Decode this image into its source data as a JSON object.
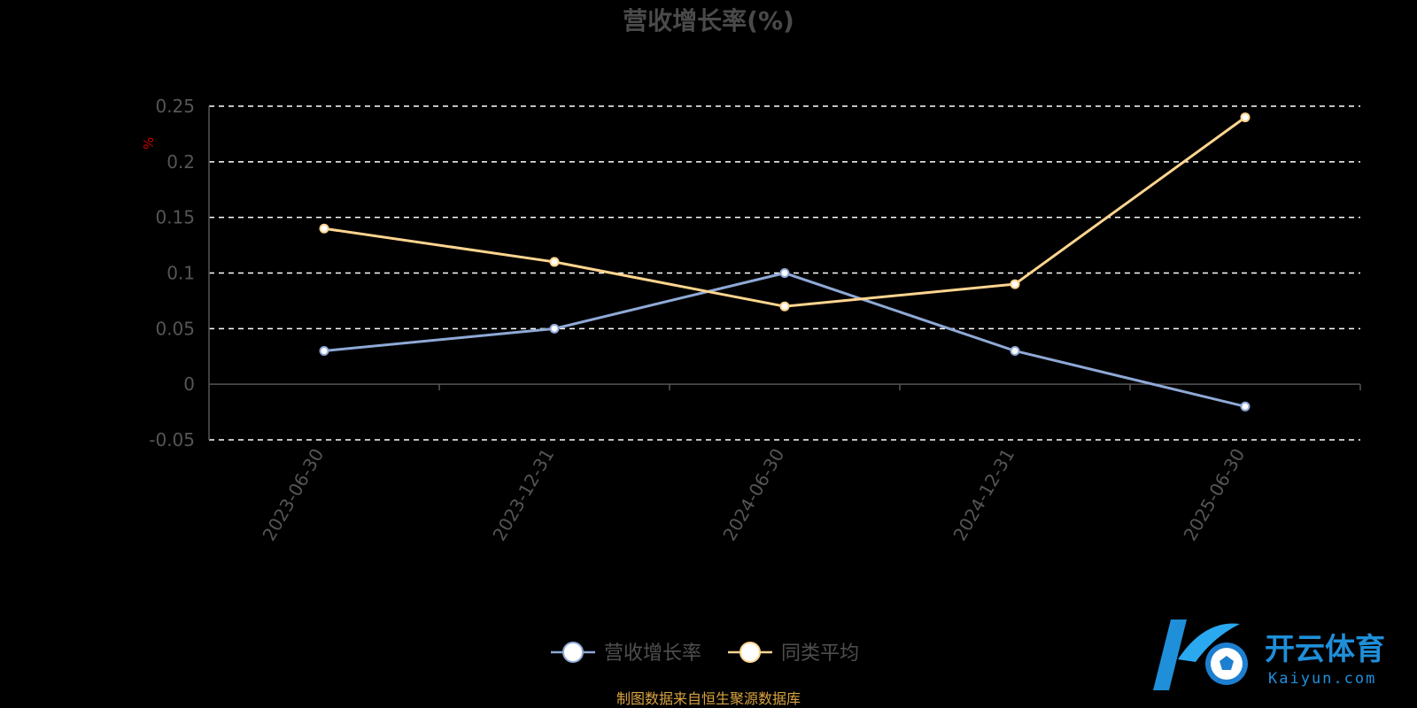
{
  "watermark": {
    "brand_cn": "开云体育",
    "brand_en": "Kaiyun.com"
  },
  "footer": {
    "source": "制图数据来自恒生聚源数据库"
  },
  "colors": {
    "background": "#000000",
    "series_revenue": "#8fa9d6",
    "series_peer": "#ffd58f",
    "grid": "#ffffff",
    "axis": "#555555",
    "unit": "#cc0000",
    "source": "#d9a441",
    "watermark": "#1f8fd9"
  },
  "chart_data": {
    "type": "line",
    "title": "营收增长率(%)",
    "ylabel": "%",
    "xlabel": "",
    "categories": [
      "2023-06-30",
      "2023-12-31",
      "2024-06-30",
      "2024-12-31",
      "2025-06-30"
    ],
    "series": [
      {
        "name": "营收增长率",
        "values": [
          0.03,
          0.05,
          0.1,
          0.03,
          -0.02
        ],
        "color": "#8fa9d6"
      },
      {
        "name": "同类平均",
        "values": [
          0.14,
          0.11,
          0.07,
          0.09,
          0.24
        ],
        "color": "#ffd58f"
      }
    ],
    "ylim": [
      -0.05,
      0.25
    ],
    "yticks": [
      "0.25",
      "0.2",
      "0.15",
      "0.1",
      "0.05",
      "0",
      "-0.05"
    ],
    "grid": true,
    "grid_style": "dashed",
    "legend_position": "bottom-center"
  }
}
